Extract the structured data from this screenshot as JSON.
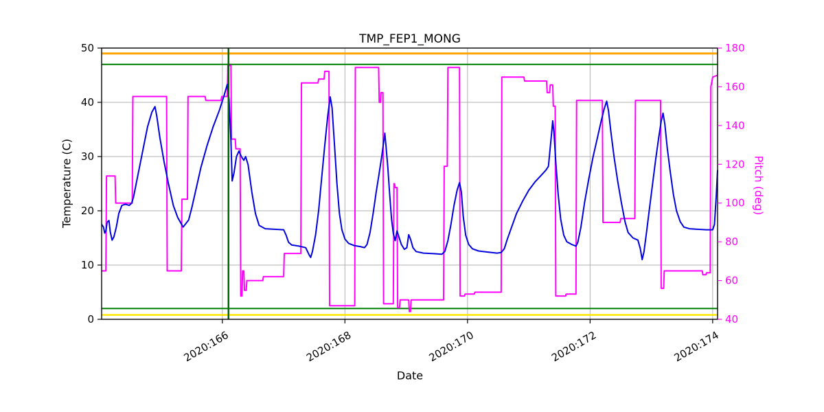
{
  "chart_data": {
    "type": "line",
    "title": "TMP_FEP1_MONG",
    "xlabel": "Date",
    "ylabel_left": "Temperature (C)",
    "ylabel_right": "Pitch (deg)",
    "x_range": [
      164.03,
      174.08
    ],
    "y_left_range": [
      0,
      50
    ],
    "y_right_range": [
      40,
      180
    ],
    "x_ticks": {
      "values": [
        166,
        168,
        170,
        172,
        174
      ],
      "labels": [
        "2020:166",
        "2020:168",
        "2020:170",
        "2020:172",
        "2020:174"
      ]
    },
    "y_left_ticks": [
      0,
      10,
      20,
      30,
      40,
      50
    ],
    "y_right_ticks": [
      40,
      60,
      80,
      100,
      120,
      140,
      160,
      180
    ],
    "grid": true,
    "legend": "none",
    "colors": {
      "temperature": "#0000dd",
      "pitch": "#ff00ff",
      "grid": "#b0b0b0",
      "frame": "#000000",
      "caution_high": "#ffa500",
      "caution_low": "#ffe600",
      "limit_green": "#008000",
      "vline_green": "#006400",
      "axis_text": "#000000"
    },
    "hlines": [
      {
        "value": 49,
        "axis": "left",
        "color_key": "caution_high",
        "width": 3
      },
      {
        "value": 47,
        "axis": "left",
        "color_key": "limit_green",
        "width": 2
      },
      {
        "value": 2,
        "axis": "left",
        "color_key": "limit_green",
        "width": 2
      },
      {
        "value": 0.8,
        "axis": "left",
        "color_key": "caution_low",
        "width": 2.5
      }
    ],
    "vlines": [
      {
        "value": 166.1,
        "color_key": "vline_green",
        "width": 2.5
      }
    ],
    "series": [
      {
        "name": "temperature",
        "axis": "left",
        "color_key": "temperature",
        "width": 2,
        "points": [
          [
            164.03,
            17.5
          ],
          [
            164.06,
            17.0
          ],
          [
            164.08,
            15.9
          ],
          [
            164.1,
            16.3
          ],
          [
            164.12,
            17.9
          ],
          [
            164.15,
            18.2
          ],
          [
            164.17,
            16.2
          ],
          [
            164.2,
            14.6
          ],
          [
            164.23,
            15.2
          ],
          [
            164.27,
            17.0
          ],
          [
            164.31,
            19.5
          ],
          [
            164.36,
            21.0
          ],
          [
            164.42,
            21.2
          ],
          [
            164.48,
            21.0
          ],
          [
            164.52,
            21.4
          ],
          [
            164.55,
            22.5
          ],
          [
            164.62,
            26.5
          ],
          [
            164.7,
            31.0
          ],
          [
            164.78,
            35.5
          ],
          [
            164.85,
            38.2
          ],
          [
            164.9,
            39.2
          ],
          [
            164.93,
            37.5
          ],
          [
            164.98,
            33.5
          ],
          [
            165.05,
            29.0
          ],
          [
            165.12,
            25.0
          ],
          [
            165.2,
            21.0
          ],
          [
            165.27,
            18.8
          ],
          [
            165.32,
            17.8
          ],
          [
            165.36,
            17.0
          ],
          [
            165.4,
            17.6
          ],
          [
            165.45,
            18.3
          ],
          [
            165.5,
            20.5
          ],
          [
            165.57,
            24.0
          ],
          [
            165.65,
            28.0
          ],
          [
            165.75,
            32.0
          ],
          [
            165.85,
            35.5
          ],
          [
            165.95,
            38.5
          ],
          [
            166.03,
            41.3
          ],
          [
            166.08,
            43.3
          ],
          [
            166.11,
            40.5
          ],
          [
            166.14,
            33.0
          ],
          [
            166.16,
            25.5
          ],
          [
            166.19,
            27.0
          ],
          [
            166.23,
            30.0
          ],
          [
            166.27,
            31.0
          ],
          [
            166.31,
            30.0
          ],
          [
            166.35,
            29.3
          ],
          [
            166.38,
            30.0
          ],
          [
            166.42,
            28.5
          ],
          [
            166.48,
            23.5
          ],
          [
            166.54,
            19.5
          ],
          [
            166.6,
            17.3
          ],
          [
            166.7,
            16.7
          ],
          [
            166.85,
            16.6
          ],
          [
            167.0,
            16.5
          ],
          [
            167.04,
            15.5
          ],
          [
            167.08,
            14.2
          ],
          [
            167.13,
            13.7
          ],
          [
            167.25,
            13.5
          ],
          [
            167.36,
            13.2
          ],
          [
            167.41,
            12.0
          ],
          [
            167.44,
            11.4
          ],
          [
            167.47,
            12.5
          ],
          [
            167.52,
            15.5
          ],
          [
            167.57,
            20.0
          ],
          [
            167.62,
            26.0
          ],
          [
            167.67,
            32.0
          ],
          [
            167.72,
            37.5
          ],
          [
            167.76,
            41.0
          ],
          [
            167.79,
            39.0
          ],
          [
            167.83,
            32.0
          ],
          [
            167.87,
            25.0
          ],
          [
            167.91,
            19.5
          ],
          [
            167.95,
            16.5
          ],
          [
            168.0,
            14.8
          ],
          [
            168.06,
            14.0
          ],
          [
            168.15,
            13.6
          ],
          [
            168.25,
            13.4
          ],
          [
            168.32,
            13.2
          ],
          [
            168.36,
            13.8
          ],
          [
            168.41,
            16.0
          ],
          [
            168.46,
            19.5
          ],
          [
            168.51,
            23.5
          ],
          [
            168.56,
            27.0
          ],
          [
            168.6,
            30.0
          ],
          [
            168.63,
            32.5
          ],
          [
            168.65,
            34.3
          ],
          [
            168.67,
            32.0
          ],
          [
            168.7,
            28.0
          ],
          [
            168.73,
            23.0
          ],
          [
            168.76,
            18.5
          ],
          [
            168.79,
            15.8
          ],
          [
            168.82,
            14.5
          ],
          [
            168.85,
            16.3
          ],
          [
            168.88,
            15.2
          ],
          [
            168.92,
            13.8
          ],
          [
            168.97,
            12.9
          ],
          [
            169.01,
            13.2
          ],
          [
            169.04,
            15.6
          ],
          [
            169.07,
            14.8
          ],
          [
            169.11,
            13.2
          ],
          [
            169.16,
            12.5
          ],
          [
            169.28,
            12.2
          ],
          [
            169.45,
            12.1
          ],
          [
            169.58,
            12.0
          ],
          [
            169.63,
            12.5
          ],
          [
            169.68,
            14.5
          ],
          [
            169.73,
            17.5
          ],
          [
            169.78,
            21.0
          ],
          [
            169.83,
            23.8
          ],
          [
            169.87,
            25.2
          ],
          [
            169.9,
            23.5
          ],
          [
            169.93,
            19.0
          ],
          [
            169.97,
            15.5
          ],
          [
            170.02,
            13.8
          ],
          [
            170.08,
            13.0
          ],
          [
            170.18,
            12.6
          ],
          [
            170.32,
            12.4
          ],
          [
            170.48,
            12.2
          ],
          [
            170.55,
            12.3
          ],
          [
            170.6,
            13.0
          ],
          [
            170.65,
            14.8
          ],
          [
            170.72,
            17.0
          ],
          [
            170.8,
            19.5
          ],
          [
            170.9,
            21.8
          ],
          [
            171.0,
            23.8
          ],
          [
            171.1,
            25.3
          ],
          [
            171.2,
            26.5
          ],
          [
            171.28,
            27.5
          ],
          [
            171.32,
            28.2
          ],
          [
            171.34,
            30.5
          ],
          [
            171.37,
            34.0
          ],
          [
            171.39,
            36.6
          ],
          [
            171.41,
            34.5
          ],
          [
            171.44,
            29.0
          ],
          [
            171.48,
            23.0
          ],
          [
            171.52,
            18.5
          ],
          [
            171.57,
            15.5
          ],
          [
            171.62,
            14.3
          ],
          [
            171.7,
            13.8
          ],
          [
            171.77,
            13.5
          ],
          [
            171.8,
            14.2
          ],
          [
            171.85,
            17.0
          ],
          [
            171.91,
            21.5
          ],
          [
            171.98,
            26.0
          ],
          [
            172.05,
            30.0
          ],
          [
            172.12,
            33.5
          ],
          [
            172.18,
            36.5
          ],
          [
            172.23,
            38.8
          ],
          [
            172.27,
            40.2
          ],
          [
            172.3,
            38.5
          ],
          [
            172.34,
            34.5
          ],
          [
            172.39,
            30.0
          ],
          [
            172.45,
            25.5
          ],
          [
            172.51,
            21.5
          ],
          [
            172.57,
            18.0
          ],
          [
            172.62,
            16.0
          ],
          [
            172.7,
            15.0
          ],
          [
            172.78,
            14.6
          ],
          [
            172.82,
            13.0
          ],
          [
            172.85,
            11.0
          ],
          [
            172.88,
            12.5
          ],
          [
            172.92,
            16.0
          ],
          [
            172.97,
            20.5
          ],
          [
            173.02,
            25.0
          ],
          [
            173.07,
            29.5
          ],
          [
            173.12,
            33.5
          ],
          [
            173.16,
            36.5
          ],
          [
            173.19,
            38.0
          ],
          [
            173.22,
            36.0
          ],
          [
            173.26,
            31.5
          ],
          [
            173.31,
            27.0
          ],
          [
            173.36,
            23.0
          ],
          [
            173.41,
            20.0
          ],
          [
            173.47,
            18.0
          ],
          [
            173.53,
            17.0
          ],
          [
            173.62,
            16.7
          ],
          [
            173.75,
            16.6
          ],
          [
            173.9,
            16.5
          ],
          [
            174.0,
            16.5
          ],
          [
            174.03,
            17.5
          ],
          [
            174.06,
            23.0
          ],
          [
            174.08,
            27.5
          ]
        ]
      },
      {
        "name": "pitch",
        "axis": "right",
        "color_key": "pitch",
        "width": 2,
        "points": [
          [
            164.03,
            65
          ],
          [
            164.1,
            65
          ],
          [
            164.11,
            114
          ],
          [
            164.25,
            114
          ],
          [
            164.26,
            100
          ],
          [
            164.53,
            100
          ],
          [
            164.54,
            155
          ],
          [
            165.09,
            155
          ],
          [
            165.1,
            65
          ],
          [
            165.33,
            65
          ],
          [
            165.34,
            102
          ],
          [
            165.43,
            102
          ],
          [
            165.44,
            155
          ],
          [
            165.72,
            155
          ],
          [
            165.73,
            153
          ],
          [
            165.98,
            153
          ],
          [
            165.99,
            155
          ],
          [
            166.08,
            155
          ],
          [
            166.09,
            171
          ],
          [
            166.14,
            171
          ],
          [
            166.15,
            133
          ],
          [
            166.21,
            133
          ],
          [
            166.22,
            128
          ],
          [
            166.29,
            128
          ],
          [
            166.3,
            52
          ],
          [
            166.32,
            52
          ],
          [
            166.33,
            65
          ],
          [
            166.35,
            65
          ],
          [
            166.36,
            55
          ],
          [
            166.39,
            55
          ],
          [
            166.4,
            60
          ],
          [
            166.66,
            60
          ],
          [
            166.67,
            62
          ],
          [
            167.0,
            62
          ],
          [
            167.01,
            74
          ],
          [
            167.28,
            74
          ],
          [
            167.29,
            162
          ],
          [
            167.56,
            162
          ],
          [
            167.57,
            164
          ],
          [
            167.66,
            164
          ],
          [
            167.67,
            168
          ],
          [
            167.74,
            168
          ],
          [
            167.75,
            47
          ],
          [
            168.16,
            47
          ],
          [
            168.17,
            170
          ],
          [
            168.55,
            170
          ],
          [
            168.56,
            152
          ],
          [
            168.58,
            152
          ],
          [
            168.59,
            157
          ],
          [
            168.62,
            157
          ],
          [
            168.63,
            48
          ],
          [
            168.79,
            48
          ],
          [
            168.8,
            110
          ],
          [
            168.81,
            110
          ],
          [
            168.82,
            108
          ],
          [
            168.85,
            108
          ],
          [
            168.86,
            46
          ],
          [
            168.89,
            46
          ],
          [
            168.9,
            50
          ],
          [
            169.04,
            50
          ],
          [
            169.05,
            44
          ],
          [
            169.07,
            44
          ],
          [
            169.08,
            50
          ],
          [
            169.61,
            50
          ],
          [
            169.62,
            119
          ],
          [
            169.67,
            119
          ],
          [
            169.68,
            170
          ],
          [
            169.87,
            170
          ],
          [
            169.88,
            52
          ],
          [
            169.95,
            52
          ],
          [
            169.96,
            53
          ],
          [
            170.11,
            53
          ],
          [
            170.12,
            54
          ],
          [
            170.55,
            54
          ],
          [
            170.56,
            165
          ],
          [
            170.92,
            165
          ],
          [
            170.93,
            163
          ],
          [
            171.29,
            163
          ],
          [
            171.3,
            157
          ],
          [
            171.34,
            157
          ],
          [
            171.35,
            161
          ],
          [
            171.39,
            161
          ],
          [
            171.4,
            150
          ],
          [
            171.43,
            150
          ],
          [
            171.44,
            52
          ],
          [
            171.6,
            52
          ],
          [
            171.61,
            53
          ],
          [
            171.77,
            53
          ],
          [
            171.78,
            153
          ],
          [
            172.2,
            153
          ],
          [
            172.21,
            90
          ],
          [
            172.49,
            90
          ],
          [
            172.5,
            92
          ],
          [
            172.73,
            92
          ],
          [
            172.74,
            153
          ],
          [
            173.15,
            153
          ],
          [
            173.16,
            56
          ],
          [
            173.2,
            56
          ],
          [
            173.21,
            65
          ],
          [
            173.83,
            65
          ],
          [
            173.84,
            63
          ],
          [
            173.89,
            63
          ],
          [
            173.9,
            64
          ],
          [
            173.96,
            64
          ],
          [
            173.97,
            160
          ],
          [
            174.0,
            165
          ],
          [
            174.08,
            166
          ]
        ]
      }
    ]
  }
}
